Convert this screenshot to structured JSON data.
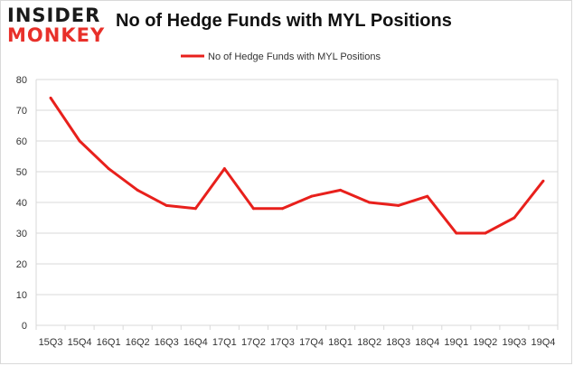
{
  "brand": {
    "line1": "INSIDER",
    "line2": "MONKEY"
  },
  "chart_data": {
    "type": "line",
    "title": "No of Hedge Funds with MYL Positions",
    "xlabel": "",
    "ylabel": "",
    "categories": [
      "15Q3",
      "15Q4",
      "16Q1",
      "16Q2",
      "16Q3",
      "16Q4",
      "17Q1",
      "17Q2",
      "17Q3",
      "17Q4",
      "18Q1",
      "18Q2",
      "18Q3",
      "18Q4",
      "19Q1",
      "19Q2",
      "19Q3",
      "19Q4"
    ],
    "series": [
      {
        "name": "No of Hedge Funds with MYL Positions",
        "values": [
          74,
          60,
          51,
          44,
          39,
          38,
          51,
          38,
          38,
          42,
          44,
          40,
          39,
          42,
          30,
          30,
          35,
          47
        ],
        "color": "#e8201c"
      }
    ],
    "ylim": [
      0,
      80
    ],
    "yticks": [
      0,
      10,
      20,
      30,
      40,
      50,
      60,
      70,
      80
    ],
    "grid": true,
    "legend": "top-center"
  }
}
